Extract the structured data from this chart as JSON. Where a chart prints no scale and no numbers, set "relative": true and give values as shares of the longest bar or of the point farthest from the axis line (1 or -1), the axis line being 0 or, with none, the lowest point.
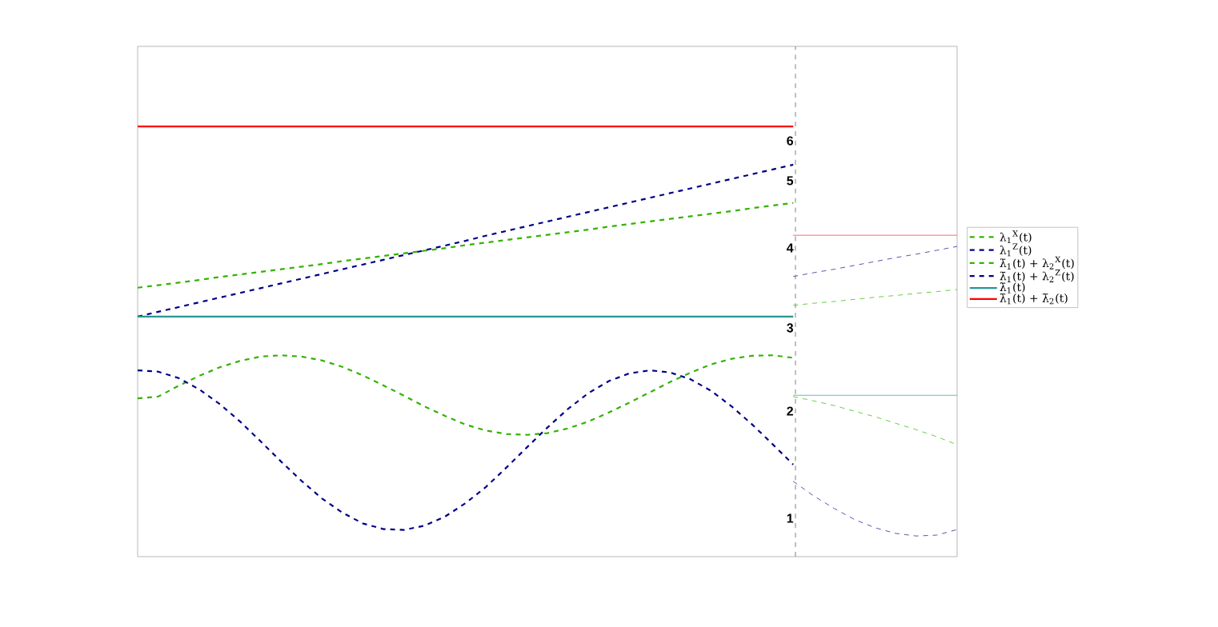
{
  "chart_data": {
    "type": "line",
    "relative": true,
    "legend": "right",
    "categories": [
      null,
      null,
      null,
      null,
      null,
      null,
      null,
      null,
      null,
      null,
      null,
      null,
      null,
      null,
      null,
      null,
      null,
      null,
      null,
      null,
      null,
      null,
      null,
      null,
      null,
      null,
      null,
      null,
      null,
      null,
      null,
      null,
      null,
      null,
      null,
      null,
      null,
      null,
      null,
      null,
      null
    ],
    "series": [
      {
        "name": "λ$_{1}$$^{X}$(t)",
        "color": "#33b300",
        "line_style": "dashed",
        "values": [
          0.368,
          0.372,
          0.397,
          0.42,
          0.44,
          0.455,
          0.465,
          0.468,
          0.465,
          0.456,
          0.441,
          0.421,
          0.398,
          0.374,
          0.349,
          0.327,
          0.307,
          0.293,
          0.285,
          0.283,
          0.287,
          0.298,
          0.314,
          0.335,
          0.358,
          0.382,
          0.406,
          0.428,
          0.447,
          0.46,
          0.467,
          0.468,
          0.462,
          null,
          null,
          null,
          null,
          null,
          null,
          null,
          null
        ]
      },
      {
        "name": "λ$_{1}$$^{Z}$(t)",
        "color": "#000088",
        "line_style": "dashed",
        "values": [
          0.433,
          0.43,
          0.415,
          0.389,
          0.355,
          0.314,
          0.268,
          0.221,
          0.176,
          0.135,
          0.102,
          0.077,
          0.064,
          0.062,
          0.072,
          0.093,
          0.124,
          0.162,
          0.207,
          0.254,
          0.3,
          0.343,
          0.38,
          0.408,
          0.426,
          0.433,
          0.428,
          0.412,
          0.385,
          0.349,
          0.307,
          0.261,
          0.214,
          null,
          null,
          null,
          null,
          null,
          null,
          null,
          null
        ]
      },
      {
        "name": "λ̄$_{1}$(t) + λ$_{2}$$^{X}$(t)",
        "color": "#33b300",
        "line_style": "dashed",
        "values": [
          0.625,
          0.631,
          0.637,
          0.643,
          0.65,
          0.656,
          0.662,
          0.668,
          0.674,
          0.68,
          0.687,
          0.693,
          0.699,
          0.705,
          0.711,
          0.717,
          0.724,
          0.73,
          0.736,
          0.742,
          0.748,
          0.754,
          0.76,
          0.767,
          0.773,
          0.779,
          0.785,
          0.791,
          0.797,
          0.803,
          0.81,
          0.816,
          0.822,
          null,
          null,
          null,
          null,
          null,
          null,
          null,
          null
        ]
      },
      {
        "name": "λ̄$_{1}$(t) + λ$_{2}$$^{Z}$(t)",
        "color": "#000088",
        "line_style": "dashed",
        "values": [
          0.558,
          0.569,
          0.58,
          0.591,
          0.602,
          0.613,
          0.624,
          0.635,
          0.646,
          0.657,
          0.668,
          0.679,
          0.69,
          0.701,
          0.712,
          0.723,
          0.734,
          0.746,
          0.757,
          0.768,
          0.779,
          0.79,
          0.801,
          0.812,
          0.823,
          0.834,
          0.845,
          0.856,
          0.867,
          0.878,
          0.889,
          0.9,
          0.911,
          null,
          null,
          null,
          null,
          null,
          null,
          null,
          null
        ]
      },
      {
        "name": "λ̄$_{1}$(t)",
        "color": "#2a9595",
        "line_style": "solid",
        "values": [
          0.558,
          0.558,
          0.558,
          0.558,
          0.558,
          0.558,
          0.558,
          0.558,
          0.558,
          0.558,
          0.558,
          0.558,
          0.558,
          0.558,
          0.558,
          0.558,
          0.558,
          0.558,
          0.558,
          0.558,
          0.558,
          0.558,
          0.558,
          0.558,
          0.558,
          0.558,
          0.558,
          0.558,
          0.558,
          0.558,
          0.558,
          0.558,
          0.558,
          null,
          null,
          null,
          null,
          null,
          null,
          null,
          null
        ]
      },
      {
        "name": "λ̄$_{1}$(t) + λ̄$_{2}$(t)",
        "color": "#ff0000",
        "line_style": "solid",
        "values": [
          1,
          1,
          1,
          1,
          1,
          1,
          1,
          1,
          1,
          1,
          1,
          1,
          1,
          1,
          1,
          1,
          1,
          1,
          1,
          1,
          1,
          1,
          1,
          1,
          1,
          1,
          1,
          1,
          1,
          1,
          1,
          1,
          1,
          null,
          null,
          null,
          null,
          null,
          null,
          null,
          null
        ]
      },
      {
        "color": "#66cc44",
        "line_style": "dashed",
        "values": [
          null,
          null,
          null,
          null,
          null,
          null,
          null,
          null,
          null,
          null,
          null,
          null,
          null,
          null,
          null,
          null,
          null,
          null,
          null,
          null,
          null,
          null,
          null,
          null,
          null,
          null,
          null,
          null,
          null,
          null,
          null,
          null,
          0.372,
          0.362,
          0.351,
          0.338,
          0.325,
          0.31,
          0.295,
          0.279,
          0.26
        ]
      },
      {
        "color": "#5555aa",
        "line_style": "dashed",
        "values": [
          null,
          null,
          null,
          null,
          null,
          null,
          null,
          null,
          null,
          null,
          null,
          null,
          null,
          null,
          null,
          null,
          null,
          null,
          null,
          null,
          null,
          null,
          null,
          null,
          null,
          null,
          null,
          null,
          null,
          null,
          null,
          null,
          0.175,
          0.141,
          0.112,
          0.086,
          0.067,
          0.054,
          0.048,
          0.05,
          0.063
        ]
      },
      {
        "color": "#66cc44",
        "line_style": "dashed",
        "values": [
          null,
          null,
          null,
          null,
          null,
          null,
          null,
          null,
          null,
          null,
          null,
          null,
          null,
          null,
          null,
          null,
          null,
          null,
          null,
          null,
          null,
          null,
          null,
          null,
          null,
          null,
          null,
          null,
          null,
          null,
          null,
          null,
          0.584,
          0.589,
          0.593,
          0.598,
          0.603,
          0.607,
          0.612,
          0.616,
          0.621
        ]
      },
      {
        "color": "#5555aa",
        "line_style": "dashed",
        "values": [
          null,
          null,
          null,
          null,
          null,
          null,
          null,
          null,
          null,
          null,
          null,
          null,
          null,
          null,
          null,
          null,
          null,
          null,
          null,
          null,
          null,
          null,
          null,
          null,
          null,
          null,
          null,
          null,
          null,
          null,
          null,
          null,
          0.651,
          0.66,
          0.668,
          0.677,
          0.686,
          0.695,
          0.703,
          0.712,
          0.721
        ]
      },
      {
        "color": "#66bbbb",
        "line_style": "solid",
        "values": [
          null,
          null,
          null,
          null,
          null,
          null,
          null,
          null,
          null,
          null,
          null,
          null,
          null,
          null,
          null,
          null,
          null,
          null,
          null,
          null,
          null,
          null,
          null,
          null,
          null,
          null,
          null,
          null,
          null,
          null,
          null,
          null,
          0.375,
          0.375,
          0.375,
          0.375,
          0.375,
          0.375,
          0.375,
          0.375,
          0.375
        ]
      },
      {
        "color": "#ff6666",
        "line_style": "solid",
        "values": [
          null,
          null,
          null,
          null,
          null,
          null,
          null,
          null,
          null,
          null,
          null,
          null,
          null,
          null,
          null,
          null,
          null,
          null,
          null,
          null,
          null,
          null,
          null,
          null,
          null,
          null,
          null,
          null,
          null,
          null,
          null,
          null,
          0.747,
          0.747,
          0.747,
          0.747,
          0.747,
          0.747,
          0.747,
          0.747,
          0.747
        ]
      }
    ],
    "annotations": [
      "6",
      "5",
      "4",
      "3",
      "2",
      "1"
    ]
  }
}
